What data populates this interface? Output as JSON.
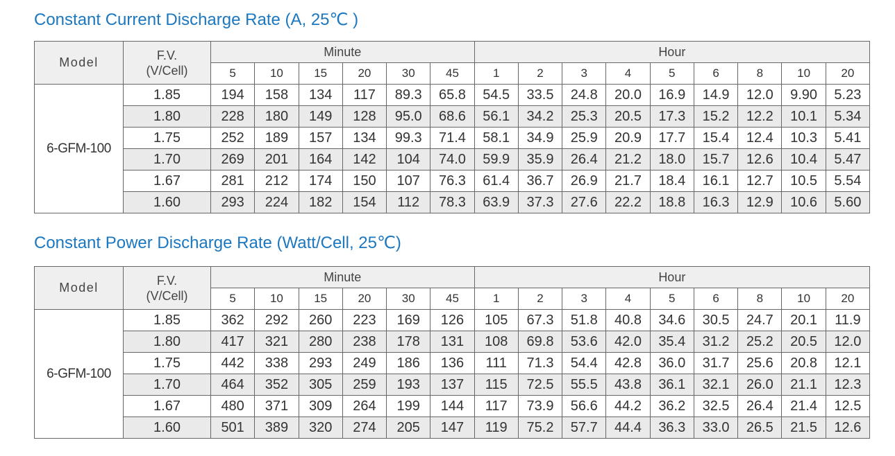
{
  "tables": [
    {
      "title": "Constant Current Discharge Rate (A, 25℃ )",
      "header": {
        "model": "Model",
        "fv_label": "F.V.",
        "fv_unit": "(V/Cell)",
        "groups": [
          {
            "label": "Minute",
            "columns": [
              "5",
              "10",
              "15",
              "20",
              "30",
              "45"
            ]
          },
          {
            "label": "Hour",
            "columns": [
              "1",
              "2",
              "3",
              "4",
              "5",
              "6",
              "8",
              "10",
              "20"
            ]
          }
        ]
      },
      "model_name": "6-GFM-100",
      "rows": [
        {
          "fv": "1.85",
          "values": [
            "194",
            "158",
            "134",
            "117",
            "89.3",
            "65.8",
            "54.5",
            "33.5",
            "24.8",
            "20.0",
            "16.9",
            "14.9",
            "12.0",
            "9.90",
            "5.23"
          ]
        },
        {
          "fv": "1.80",
          "values": [
            "228",
            "180",
            "149",
            "128",
            "95.0",
            "68.6",
            "56.1",
            "34.2",
            "25.3",
            "20.5",
            "17.3",
            "15.2",
            "12.2",
            "10.1",
            "5.34"
          ]
        },
        {
          "fv": "1.75",
          "values": [
            "252",
            "189",
            "157",
            "134",
            "99.3",
            "71.4",
            "58.1",
            "34.9",
            "25.9",
            "20.9",
            "17.7",
            "15.4",
            "12.4",
            "10.3",
            "5.41"
          ]
        },
        {
          "fv": "1.70",
          "values": [
            "269",
            "201",
            "164",
            "142",
            "104",
            "74.0",
            "59.9",
            "35.9",
            "26.4",
            "21.2",
            "18.0",
            "15.7",
            "12.6",
            "10.4",
            "5.47"
          ]
        },
        {
          "fv": "1.67",
          "values": [
            "281",
            "212",
            "174",
            "150",
            "107",
            "76.3",
            "61.4",
            "36.7",
            "26.9",
            "21.7",
            "18.4",
            "16.1",
            "12.7",
            "10.5",
            "5.54"
          ]
        },
        {
          "fv": "1.60",
          "values": [
            "293",
            "224",
            "182",
            "154",
            "112",
            "78.3",
            "63.9",
            "37.3",
            "27.6",
            "22.2",
            "18.8",
            "16.3",
            "12.9",
            "10.6",
            "5.60"
          ]
        }
      ]
    },
    {
      "title": "Constant Power Discharge Rate (Watt/Cell, 25℃)",
      "header": {
        "model": "Model",
        "fv_label": "F.V.",
        "fv_unit": "(V/Cell)",
        "groups": [
          {
            "label": "Minute",
            "columns": [
              "5",
              "10",
              "15",
              "20",
              "30",
              "45"
            ]
          },
          {
            "label": "Hour",
            "columns": [
              "1",
              "2",
              "3",
              "4",
              "5",
              "6",
              "8",
              "10",
              "20"
            ]
          }
        ]
      },
      "model_name": "6-GFM-100",
      "rows": [
        {
          "fv": "1.85",
          "values": [
            "362",
            "292",
            "260",
            "223",
            "169",
            "126",
            "105",
            "67.3",
            "51.8",
            "40.8",
            "34.6",
            "30.5",
            "24.7",
            "20.1",
            "11.9"
          ]
        },
        {
          "fv": "1.80",
          "values": [
            "417",
            "321",
            "280",
            "238",
            "178",
            "131",
            "108",
            "69.8",
            "53.6",
            "42.0",
            "35.4",
            "31.2",
            "25.2",
            "20.5",
            "12.0"
          ]
        },
        {
          "fv": "1.75",
          "values": [
            "442",
            "338",
            "293",
            "249",
            "186",
            "136",
            "111",
            "71.3",
            "54.4",
            "42.8",
            "36.0",
            "31.7",
            "25.6",
            "20.8",
            "12.1"
          ]
        },
        {
          "fv": "1.70",
          "values": [
            "464",
            "352",
            "305",
            "259",
            "193",
            "137",
            "115",
            "72.5",
            "55.5",
            "43.8",
            "36.1",
            "32.1",
            "26.0",
            "21.1",
            "12.3"
          ]
        },
        {
          "fv": "1.67",
          "values": [
            "480",
            "371",
            "309",
            "264",
            "199",
            "144",
            "117",
            "73.9",
            "56.6",
            "44.2",
            "36.2",
            "32.5",
            "26.4",
            "21.4",
            "12.5"
          ]
        },
        {
          "fv": "1.60",
          "values": [
            "501",
            "389",
            "320",
            "274",
            "205",
            "147",
            "119",
            "75.2",
            "57.7",
            "44.4",
            "36.3",
            "33.0",
            "26.5",
            "21.5",
            "12.6"
          ]
        }
      ]
    }
  ]
}
